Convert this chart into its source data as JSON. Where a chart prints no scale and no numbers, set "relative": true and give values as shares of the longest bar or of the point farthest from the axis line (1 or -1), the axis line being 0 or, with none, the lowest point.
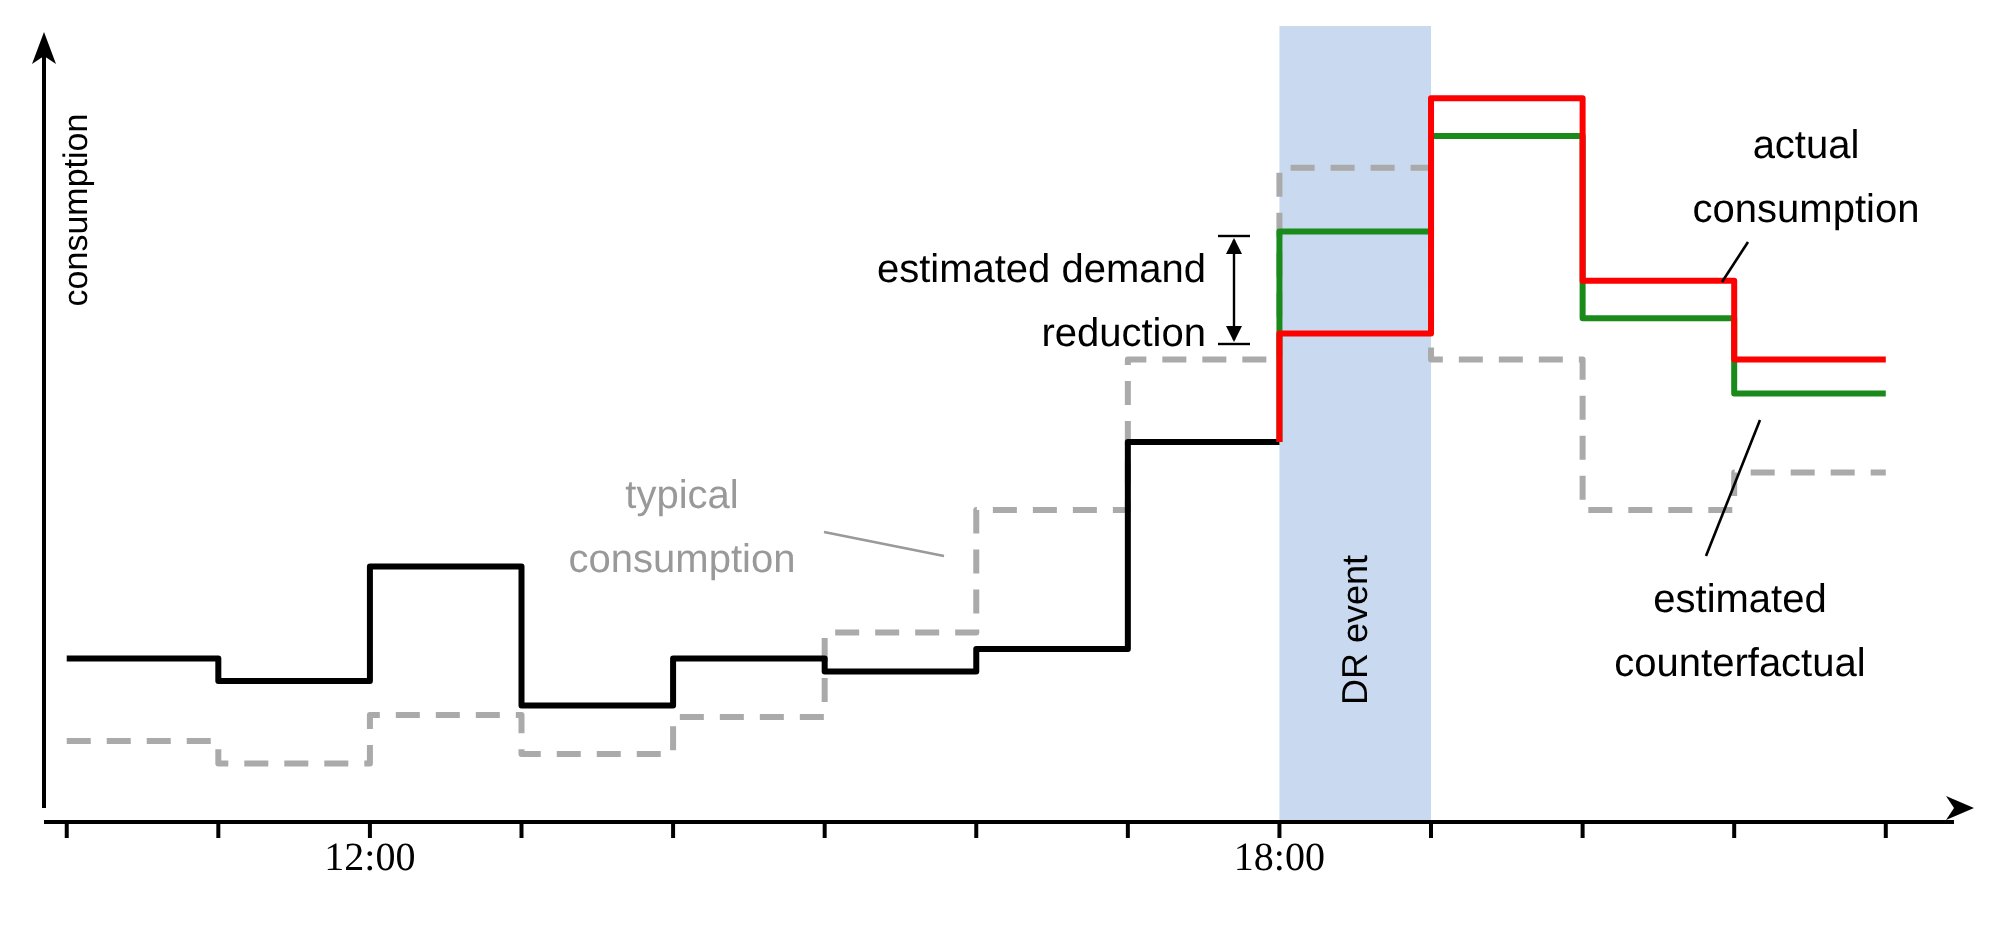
{
  "chart_data": {
    "type": "step",
    "relative": true,
    "ylabel": "consumption",
    "xlim": [
      9.85,
      22.45
    ],
    "xticks": [
      {
        "value": 10,
        "label": null
      },
      {
        "value": 11,
        "label": null
      },
      {
        "value": 12,
        "label": "12:00"
      },
      {
        "value": 13,
        "label": null
      },
      {
        "value": 14,
        "label": null
      },
      {
        "value": 15,
        "label": null
      },
      {
        "value": 16,
        "label": null
      },
      {
        "value": 17,
        "label": null
      },
      {
        "value": 18,
        "label": "18:00"
      },
      {
        "value": 19,
        "label": null
      },
      {
        "value": 20,
        "label": null
      },
      {
        "value": 21,
        "label": null
      },
      {
        "value": 22,
        "label": null
      }
    ],
    "series": [
      {
        "color": "#aaaaaa",
        "line_style": "dashed",
        "x": [
          10,
          11,
          12,
          13,
          14,
          15,
          16,
          17,
          18,
          19,
          20,
          21,
          22
        ],
        "values": [
          0.112,
          0.081,
          0.148,
          0.094,
          0.145,
          0.262,
          0.431,
          0.639,
          0.904,
          0.639,
          0.431,
          0.483,
          0.483
        ]
      },
      {
        "color": "#000000",
        "line_style": "solid",
        "x": [
          10,
          11,
          12,
          13,
          14,
          15,
          16,
          17,
          18
        ],
        "values": [
          0.226,
          0.195,
          0.353,
          0.161,
          0.226,
          0.208,
          0.239,
          0.525,
          0.525
        ]
      },
      {
        "color": "#1a8a1a",
        "line_style": "solid",
        "x": [
          18,
          18,
          19,
          20,
          21,
          22
        ],
        "values": [
          0.525,
          0.816,
          0.948,
          0.696,
          0.592,
          0.592
        ]
      },
      {
        "color": "#ff0000",
        "line_style": "solid",
        "x": [
          18,
          18,
          19,
          20,
          21,
          22
        ],
        "values": [
          0.525,
          0.675,
          1,
          0.748,
          0.639,
          0.639
        ]
      }
    ],
    "bands": [
      {
        "axis": "x",
        "from": 18,
        "to": 19,
        "label": "DR event",
        "color": "#c9daf0"
      }
    ],
    "annotations": [
      "estimated demand reduction",
      "typical consumption",
      "actual consumption",
      "estimated counterfactual"
    ]
  }
}
